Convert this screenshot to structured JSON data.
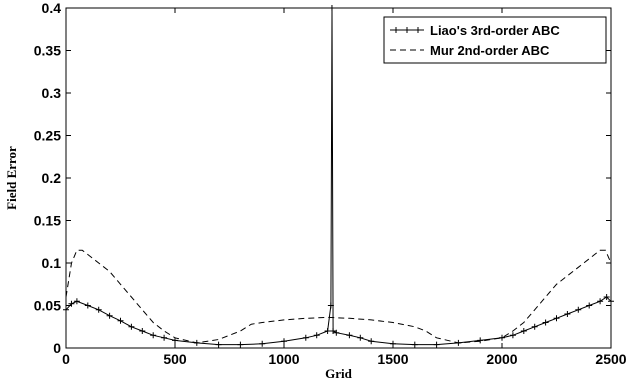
{
  "chart_data": {
    "type": "line",
    "title": "",
    "xlabel": "Grid",
    "ylabel": "Field Error",
    "xlim": [
      0,
      2500
    ],
    "ylim": [
      0,
      0.4
    ],
    "x_ticks": [
      "0",
      "500",
      "1000",
      "1500",
      "2000",
      "2500"
    ],
    "y_ticks": [
      "0",
      "0.05",
      "0.1",
      "0.15",
      "0.2",
      "0.25",
      "0.3",
      "0.35",
      "0.4"
    ],
    "grid": false,
    "legend_position": "top-right",
    "series": [
      {
        "name": "Liao's 3rd-order ABC",
        "style": "solid-with-markers",
        "color": "#000000",
        "x": [
          0,
          25,
          50,
          100,
          150,
          200,
          250,
          300,
          350,
          400,
          450,
          500,
          600,
          700,
          800,
          900,
          1000,
          1100,
          1150,
          1200,
          1215,
          1220,
          1225,
          1240,
          1300,
          1350,
          1400,
          1500,
          1600,
          1700,
          1800,
          1900,
          2000,
          2050,
          2100,
          2150,
          2200,
          2250,
          2300,
          2350,
          2400,
          2450,
          2480,
          2500
        ],
        "y": [
          0.045,
          0.052,
          0.055,
          0.05,
          0.045,
          0.038,
          0.032,
          0.025,
          0.02,
          0.015,
          0.012,
          0.009,
          0.006,
          0.004,
          0.004,
          0.005,
          0.008,
          0.012,
          0.015,
          0.02,
          0.05,
          0.4,
          0.02,
          0.018,
          0.015,
          0.012,
          0.008,
          0.005,
          0.004,
          0.004,
          0.006,
          0.009,
          0.012,
          0.015,
          0.02,
          0.025,
          0.03,
          0.035,
          0.04,
          0.045,
          0.05,
          0.055,
          0.06,
          0.055
        ]
      },
      {
        "name": "Mur 2nd-order ABC",
        "style": "dashed",
        "color": "#000000",
        "x": [
          0,
          25,
          50,
          75,
          100,
          150,
          200,
          250,
          300,
          350,
          400,
          450,
          500,
          600,
          700,
          800,
          850,
          900,
          1000,
          1100,
          1200,
          1300,
          1400,
          1500,
          1600,
          1650,
          1700,
          1800,
          1900,
          2000,
          2050,
          2100,
          2150,
          2200,
          2250,
          2300,
          2350,
          2400,
          2425,
          2450,
          2475,
          2500
        ],
        "y": [
          0.06,
          0.1,
          0.115,
          0.115,
          0.11,
          0.1,
          0.09,
          0.075,
          0.06,
          0.045,
          0.03,
          0.02,
          0.012,
          0.006,
          0.01,
          0.02,
          0.028,
          0.03,
          0.033,
          0.035,
          0.036,
          0.035,
          0.033,
          0.03,
          0.025,
          0.02,
          0.012,
          0.006,
          0.008,
          0.012,
          0.02,
          0.03,
          0.045,
          0.06,
          0.075,
          0.085,
          0.095,
          0.105,
          0.11,
          0.115,
          0.115,
          0.1
        ]
      }
    ]
  }
}
